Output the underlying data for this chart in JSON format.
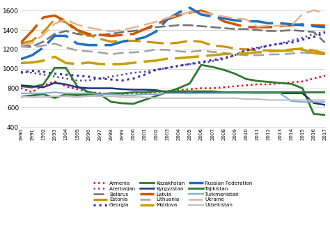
{
  "years": [
    1990,
    1991,
    1992,
    1993,
    1994,
    1995,
    1996,
    1997,
    1998,
    1999,
    2000,
    2001,
    2002,
    2003,
    2004,
    2005,
    2006,
    2007,
    2008,
    2009,
    2010,
    2011,
    2012,
    2013,
    2014,
    2015,
    2016,
    2017
  ],
  "Armenia": [
    800,
    760,
    830,
    870,
    820,
    790,
    760,
    750,
    740,
    740,
    750,
    750,
    760,
    770,
    780,
    790,
    800,
    800,
    810,
    820,
    830,
    840,
    840,
    850,
    860,
    870,
    900,
    930
  ],
  "Azerbaijan": [
    970,
    960,
    940,
    920,
    900,
    880,
    880,
    900,
    920,
    940,
    960,
    970,
    990,
    1010,
    1030,
    1050,
    1060,
    1080,
    1100,
    1140,
    1200,
    1220,
    1240,
    1260,
    1290,
    1320,
    1360,
    1380
  ],
  "Belarus": [
    1250,
    1230,
    1280,
    1360,
    1390,
    1360,
    1340,
    1350,
    1360,
    1380,
    1390,
    1410,
    1430,
    1440,
    1450,
    1450,
    1440,
    1430,
    1420,
    1410,
    1410,
    1400,
    1390,
    1390,
    1400,
    1390,
    1380,
    1270
  ],
  "Estonia": [
    1260,
    1290,
    1380,
    1510,
    1480,
    1380,
    1350,
    1310,
    1280,
    1290,
    1290,
    1280,
    1270,
    1260,
    1270,
    1290,
    1280,
    1240,
    1230,
    1210,
    1200,
    1190,
    1190,
    1190,
    1200,
    1210,
    1190,
    1160
  ],
  "Georgia": [
    960,
    980,
    970,
    950,
    940,
    930,
    920,
    900,
    890,
    880,
    900,
    940,
    990,
    1010,
    1030,
    1050,
    1070,
    1090,
    1110,
    1140,
    1190,
    1210,
    1240,
    1260,
    1270,
    1300,
    1330,
    1370
  ],
  "Kazakhstan": [
    820,
    810,
    840,
    1010,
    1010,
    820,
    760,
    740,
    660,
    645,
    640,
    680,
    720,
    760,
    800,
    850,
    1040,
    1020,
    990,
    950,
    895,
    875,
    865,
    855,
    845,
    800,
    535,
    525
  ],
  "Kyrgyzstan": [
    830,
    820,
    810,
    855,
    840,
    810,
    800,
    800,
    800,
    790,
    785,
    785,
    780,
    760,
    760,
    748,
    758,
    760,
    758,
    758,
    758,
    748,
    748,
    748,
    748,
    748,
    648,
    628
  ],
  "Latvia": [
    1270,
    1390,
    1530,
    1550,
    1490,
    1400,
    1360,
    1350,
    1340,
    1350,
    1360,
    1410,
    1460,
    1510,
    1550,
    1580,
    1600,
    1560,
    1490,
    1460,
    1430,
    1430,
    1430,
    1440,
    1450,
    1460,
    1450,
    1445
  ],
  "Lithuania": [
    1230,
    1220,
    1240,
    1260,
    1220,
    1190,
    1180,
    1170,
    1150,
    1165,
    1170,
    1180,
    1200,
    1195,
    1180,
    1175,
    1188,
    1175,
    1165,
    1150,
    1140,
    1140,
    1148,
    1150,
    1158,
    1168,
    1160,
    1150
  ],
  "Moldova": [
    1060,
    1065,
    1085,
    1125,
    1060,
    1050,
    1065,
    1050,
    1048,
    1050,
    1062,
    1075,
    1085,
    1105,
    1110,
    1120,
    1130,
    1140,
    1152,
    1155,
    1160,
    1170,
    1180,
    1185,
    1190,
    1200,
    1162,
    1152
  ],
  "Russian Federation": [
    1100,
    1140,
    1220,
    1340,
    1340,
    1260,
    1245,
    1245,
    1245,
    1280,
    1300,
    1325,
    1385,
    1510,
    1580,
    1630,
    1560,
    1540,
    1520,
    1500,
    1490,
    1490,
    1470,
    1470,
    1460,
    1450,
    1440,
    1430
  ],
  "Tajikistan": [
    715,
    725,
    738,
    700,
    738,
    728,
    738,
    738,
    748,
    748,
    758,
    758,
    768,
    768,
    768,
    768,
    768,
    768,
    758,
    758,
    758,
    758,
    758,
    758,
    758,
    758,
    758,
    758
  ],
  "Turkmenistan": [
    748,
    748,
    748,
    758,
    748,
    748,
    748,
    738,
    738,
    728,
    728,
    738,
    738,
    748,
    748,
    748,
    748,
    748,
    748,
    748,
    748,
    748,
    748,
    748,
    668,
    658,
    658,
    658
  ],
  "Ukraine": [
    1240,
    1265,
    1350,
    1465,
    1510,
    1455,
    1425,
    1405,
    1385,
    1402,
    1425,
    1455,
    1485,
    1525,
    1555,
    1585,
    1585,
    1560,
    1540,
    1520,
    1510,
    1435,
    1445,
    1445,
    1445,
    1565,
    1605,
    1575
  ],
  "Uzbekistan": [
    718,
    708,
    708,
    718,
    718,
    708,
    718,
    718,
    718,
    708,
    708,
    708,
    698,
    698,
    698,
    698,
    698,
    698,
    698,
    698,
    688,
    688,
    678,
    678,
    678,
    678,
    678,
    678
  ],
  "ylim": [
    400,
    1680
  ],
  "yticks": [
    400,
    600,
    800,
    1000,
    1200,
    1400,
    1600
  ],
  "countries": [
    "Armenia",
    "Azerbaijan",
    "Belarus",
    "Estonia",
    "Georgia",
    "Kazakhstan",
    "Kyrgyzstan",
    "Latvia",
    "Lithuania",
    "Moldova",
    "Russian Federation",
    "Tajikistan",
    "Turkmenistan",
    "Ukraine",
    "Uzbekistan"
  ],
  "colors": {
    "Armenia": "#e8001a",
    "Azerbaijan": "#6040a0",
    "Belarus": "#707070",
    "Estonia": "#cc9000",
    "Georgia": "#3030b0",
    "Kazakhstan": "#2a7a2a",
    "Kyrgyzstan": "#1a3580",
    "Latvia": "#d05500",
    "Lithuania": "#a0a0a0",
    "Moldova": "#c8a000",
    "Russian Federation": "#2070c0",
    "Tajikistan": "#2d7a2d",
    "Turkmenistan": "#80aad0",
    "Ukraine": "#e8b090",
    "Uzbekistan": "#c0c0c0"
  },
  "styles": {
    "Armenia": {
      "ls": ":",
      "lw": 1.8,
      "dashes": null
    },
    "Azerbaijan": {
      "ls": ":",
      "lw": 1.8,
      "dashes": null
    },
    "Belarus": {
      "ls": "--",
      "lw": 1.8,
      "dashes": [
        6,
        2
      ]
    },
    "Estonia": {
      "ls": "--",
      "lw": 2.2,
      "dashes": [
        8,
        3
      ]
    },
    "Georgia": {
      "ls": ":",
      "lw": 2.2,
      "dashes": null
    },
    "Kazakhstan": {
      "ls": "-",
      "lw": 2.0,
      "dashes": null
    },
    "Kyrgyzstan": {
      "ls": "-",
      "lw": 1.8,
      "dashes": null
    },
    "Latvia": {
      "ls": "--",
      "lw": 2.5,
      "dashes": [
        10,
        3
      ]
    },
    "Lithuania": {
      "ls": "--",
      "lw": 1.8,
      "dashes": [
        6,
        3
      ]
    },
    "Moldova": {
      "ls": "--",
      "lw": 2.5,
      "dashes": [
        10,
        3
      ]
    },
    "Russian Federation": {
      "ls": "--",
      "lw": 2.5,
      "dashes": [
        10,
        3
      ]
    },
    "Tajikistan": {
      "ls": "-",
      "lw": 2.0,
      "dashes": null
    },
    "Turkmenistan": {
      "ls": "-",
      "lw": 1.5,
      "dashes": null
    },
    "Ukraine": {
      "ls": "--",
      "lw": 1.8,
      "dashes": [
        8,
        3
      ]
    },
    "Uzbekistan": {
      "ls": "-",
      "lw": 1.5,
      "dashes": null
    }
  },
  "legend_order": [
    "Armenia",
    "Azerbaijan",
    "Belarus",
    "Estonia",
    "Georgia",
    "Kazakhstan",
    "Kyrgyzstan",
    "Latvia",
    "Lithuania",
    "Moldova",
    "Russian Federation",
    "Tajikistan",
    "Turkmenistan",
    "Ukraine",
    "Uzbekistan"
  ]
}
